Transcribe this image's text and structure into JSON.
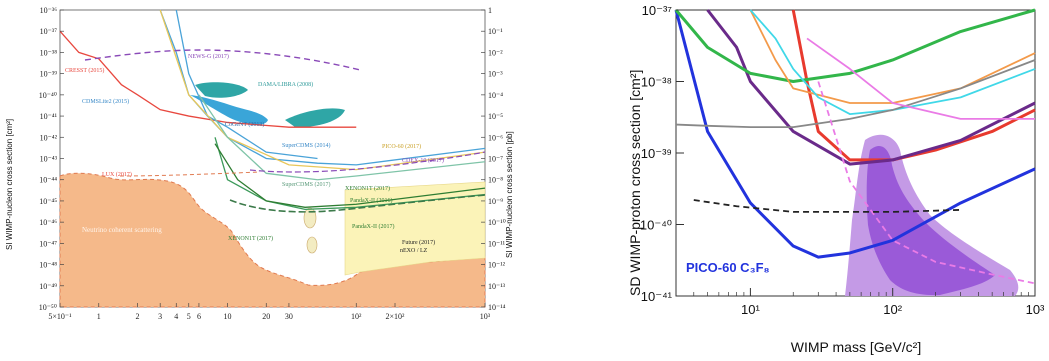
{
  "chart_data": [
    {
      "type": "line",
      "xscale": "log",
      "yscale": "log",
      "xlim": [
        0.5,
        1000
      ],
      "ylim": [
        1e-50,
        1e-36
      ],
      "right_ylim": [
        1e-14,
        1
      ],
      "ylabel": "SI WIMP-nucleon cross section [cm²]",
      "right_ylabel": "SI WIMP-nucleon cross section [pb]",
      "x_ticks": [
        "5×10⁻¹",
        "1",
        "2",
        "3",
        "4",
        "5",
        "6",
        "10",
        "20",
        "30",
        "10²",
        "2×10²",
        "10³"
      ],
      "y_ticks": [
        "10⁻³⁶",
        "10⁻³⁷",
        "10⁻³⁸",
        "10⁻³⁹",
        "10⁻⁴⁰",
        "10⁻⁴¹",
        "10⁻⁴²",
        "10⁻⁴³",
        "10⁻⁴⁴",
        "10⁻⁴⁵",
        "10⁻⁴⁶",
        "10⁻⁴⁷",
        "10⁻⁴⁸",
        "10⁻⁴⁹",
        "10⁻⁵⁰"
      ],
      "right_ticks": [
        "1",
        "10⁻¹",
        "10⁻²",
        "10⁻³",
        "10⁻⁴",
        "10⁻⁵",
        "10⁻⁶",
        "10⁻⁷",
        "10⁻⁸",
        "10⁻⁹",
        "10⁻¹⁰",
        "10⁻¹¹",
        "10⁻¹²",
        "10⁻¹³",
        "10⁻¹⁴"
      ],
      "labels": {
        "cresst": "CRESST (2015)",
        "newsg": "NEWS-G (2017)",
        "dama": "DAMA/LIBRA (2008)",
        "cdms": "CDMSLite2 (2015)",
        "cogent": "CoGeNT (2013)",
        "superk": "SuperCDMS (2014)",
        "pico": "PICO-60 (2017)",
        "cdex": "CDEX-10 (2017)",
        "supercdms2017": "SuperCDMS (2017)",
        "xenon1t": "XENON1T (2017)",
        "pandax": "PandaX-II (2016)",
        "pandax2": "PandaX-II (2017)",
        "lux": "LUX (2017)",
        "neutrino": "Neutrino coherent scattering",
        "xenon_proj": "XENON1T (2017)",
        "future": "Future (2017)",
        "future2": "nEXO / LZ"
      },
      "series": [
        {
          "name": "CRESST (2015)",
          "color": "#e8483f",
          "x": [
            0.5,
            0.7,
            1,
            1.5,
            2,
            3,
            5,
            10,
            30,
            100
          ],
          "y": [
            1e-37,
            1e-38,
            5e-39,
            3e-40,
            1e-40,
            2e-41,
            1e-41,
            5e-42,
            3e-42,
            3e-42
          ]
        },
        {
          "name": "CDMSLite2 (2015)",
          "color": "#4aa3d8",
          "x": [
            3,
            4,
            5,
            7,
            10,
            20,
            50
          ],
          "y": [
            1e-36,
            1e-38,
            1e-40,
            1e-41,
            3e-42,
            2e-43,
            1e-43
          ]
        },
        {
          "name": "SuperCDMS (2014)",
          "color": "#4aa3d8",
          "x": [
            4,
            5,
            7,
            10,
            20,
            50,
            100,
            1000
          ],
          "y": [
            1e-36,
            1e-39,
            1e-41,
            1e-42,
            1e-43,
            6e-44,
            5e-44,
            3e-43
          ]
        },
        {
          "name": "PICO-60 (2017)",
          "color": "#e8c75a",
          "x": [
            3,
            5,
            10,
            30,
            100,
            1000
          ],
          "y": [
            1e-36,
            1e-40,
            1e-42,
            5e-44,
            3e-44,
            2e-43
          ]
        },
        {
          "name": "SuperCDMS (2017)",
          "color": "#7fc4a8",
          "x": [
            6,
            10,
            20,
            50,
            100,
            1000
          ],
          "y": [
            1e-40,
            1e-42,
            2e-44,
            1e-44,
            1.5e-44,
            7e-44
          ]
        },
        {
          "name": "LUX (2017)",
          "color": "#3c9a5a",
          "x": [
            8,
            10,
            20,
            40,
            100,
            1000
          ],
          "y": [
            1e-42,
            1e-44,
            1e-45,
            4e-46,
            5e-46,
            2e-45
          ]
        },
        {
          "name": "XENON1T (2017)",
          "color": "#2e7d32",
          "x": [
            8,
            12,
            20,
            40,
            100,
            1000
          ],
          "y": [
            5e-43,
            1e-44,
            1e-45,
            5e-46,
            7e-46,
            4e-45
          ]
        }
      ]
    },
    {
      "type": "line",
      "xscale": "log",
      "yscale": "log",
      "xlim": [
        3,
        1000
      ],
      "ylim": [
        1e-41,
        1e-37
      ],
      "xlabel": "WIMP mass [GeV/c²]",
      "ylabel": "SD WIMP-proton cross section [cm²]",
      "x_ticks": [
        "10¹",
        "10²",
        "10³"
      ],
      "y_ticks": [
        "10⁻³⁷",
        "10⁻³⁸",
        "10⁻³⁹",
        "10⁻⁴⁰",
        "10⁻⁴¹"
      ],
      "annotation": "PICO-60 C₃F₈",
      "series": [
        {
          "color": "#2233dd",
          "x": [
            3,
            5,
            10,
            20,
            30,
            50,
            100,
            300,
            1000
          ],
          "y": [
            1e-37,
            2e-39,
            2e-40,
            5e-41,
            3.5e-41,
            4e-41,
            6e-41,
            2e-40,
            6e-40
          ]
        },
        {
          "color": "#e83a2e",
          "x": [
            20,
            25,
            30,
            50,
            100,
            200,
            500,
            1000
          ],
          "y": [
            1e-37,
            1e-38,
            2e-39,
            8e-40,
            8e-40,
            1.1e-39,
            2e-39,
            4e-39
          ]
        },
        {
          "color": "#6a2a8a",
          "x": [
            5,
            8,
            10,
            20,
            50,
            100,
            300,
            1000
          ],
          "y": [
            1e-37,
            3e-38,
            1e-38,
            2e-39,
            7e-40,
            8e-40,
            1.5e-39,
            5e-39
          ]
        },
        {
          "color": "#32b64a",
          "x": [
            3,
            5,
            10,
            20,
            50,
            100,
            300,
            1000
          ],
          "y": [
            1e-37,
            3e-38,
            1.3e-38,
            1e-38,
            1.3e-38,
            2e-38,
            5e-38,
            1.5e-37
          ]
        },
        {
          "color": "#f39a4a",
          "x": [
            10,
            15,
            20,
            50,
            100,
            300,
            1000
          ],
          "y": [
            1e-37,
            2e-38,
            8e-39,
            5e-39,
            5e-39,
            8e-39,
            2.5e-38
          ]
        },
        {
          "color": "#40d8e8",
          "x": [
            10,
            15,
            20,
            30,
            50,
            100,
            300,
            1000
          ],
          "y": [
            1e-37,
            4e-38,
            1.5e-38,
            6e-39,
            3.5e-39,
            4e-39,
            6e-39,
            1.5e-38
          ]
        },
        {
          "color": "#888888",
          "x": [
            3,
            5,
            10,
            20,
            50,
            100,
            300,
            1000
          ],
          "y": [
            2.5e-39,
            2.4e-39,
            2.3e-39,
            2.3e-39,
            3e-39,
            4e-39,
            8e-39,
            2e-38
          ]
        },
        {
          "color": "#ea7be6",
          "x": [
            25,
            50,
            100,
            300,
            1000
          ],
          "y": [
            4e-38,
            1.5e-38,
            5e-39,
            3e-39,
            3e-39
          ]
        },
        {
          "color": "#ea7be6",
          "dash": true,
          "x": [
            30,
            50,
            100,
            200,
            500,
            1000
          ],
          "y": [
            1e-38,
            4e-40,
            6e-41,
            3e-41,
            2e-41,
            1.5e-41
          ]
        },
        {
          "color": "#222222",
          "dash": true,
          "x": [
            4,
            8,
            20,
            50,
            100,
            300
          ],
          "y": [
            2.2e-40,
            1.8e-40,
            1.5e-40,
            1.5e-40,
            1.5e-40,
            1.6e-40
          ]
        }
      ]
    }
  ]
}
